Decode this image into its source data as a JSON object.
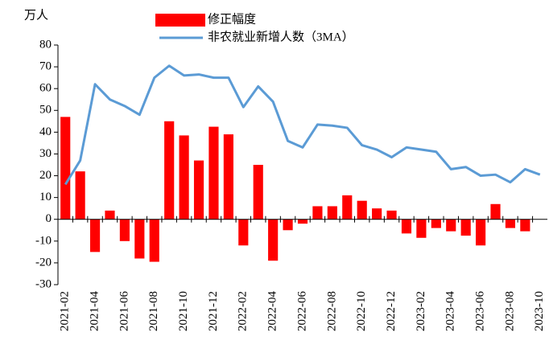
{
  "chart_data": {
    "type": "bar_line",
    "y_unit": "万人",
    "categories": [
      "2021-02",
      null,
      "2021-04",
      null,
      "2021-06",
      null,
      "2021-08",
      null,
      "2021-10",
      null,
      "2021-12",
      null,
      "2022-02",
      null,
      "2022-04",
      null,
      "2022-06",
      null,
      "2022-08",
      null,
      "2022-10",
      null,
      "2022-12",
      null,
      "2023-02",
      null,
      "2023-04",
      null,
      "2023-06",
      null,
      "2023-08",
      null,
      "2023-10"
    ],
    "series": [
      {
        "name": "修正幅度",
        "kind": "bar",
        "color": "#ff0000",
        "values": [
          47,
          22,
          -15,
          4,
          -10,
          -18,
          -19.5,
          45,
          38.5,
          27,
          42.5,
          39,
          -12,
          25,
          -19,
          -5,
          -2,
          6,
          6,
          11,
          8.5,
          5,
          4,
          -6.5,
          -8.5,
          -4,
          -5.5,
          -7.5,
          -12,
          7,
          -4,
          -5.5,
          null
        ]
      },
      {
        "name": "非农就业新增人数（3MA）",
        "kind": "line",
        "color": "#5b9bd5",
        "values": [
          16,
          27,
          62,
          55,
          52,
          48,
          65,
          70.5,
          66,
          66.5,
          65,
          65,
          51.5,
          61,
          54,
          36,
          33,
          43.5,
          43,
          42,
          34,
          32,
          28.5,
          33,
          32,
          31,
          23,
          24,
          20,
          20.5,
          17,
          23,
          20.5
        ]
      }
    ],
    "ylim": [
      -30,
      80
    ],
    "yticks": [
      -30,
      -20,
      -10,
      0,
      10,
      20,
      30,
      40,
      50,
      60,
      70,
      80
    ]
  }
}
